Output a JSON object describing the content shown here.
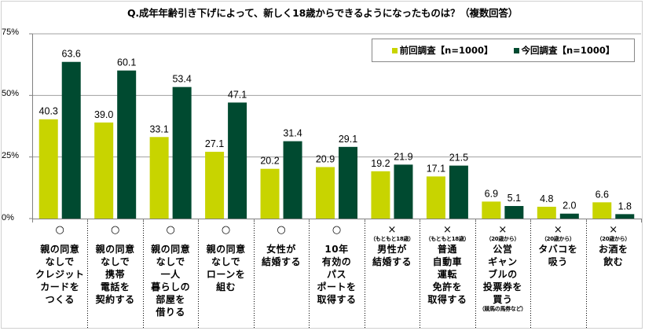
{
  "chart_data": {
    "type": "bar",
    "title": "Q.成年年齢引き下げによって、新しく18歳からできるようになったものは？（複数回答）",
    "xlabel": "",
    "ylabel": "",
    "ylim": [
      0,
      75
    ],
    "yticks": [
      "0%",
      "25%",
      "50%",
      "75%"
    ],
    "ytick_values": [
      0,
      25,
      50,
      75
    ],
    "grid": true,
    "legend_position": "top-right",
    "categories": [
      {
        "mark": "○",
        "note": "",
        "lines": [
          "親の同意",
          "なしで",
          "クレジット",
          "カードを",
          "つくる"
        ],
        "footnote": ""
      },
      {
        "mark": "○",
        "note": "",
        "lines": [
          "親の同意",
          "なしで",
          "携帯",
          "電話を",
          "契約する"
        ],
        "footnote": ""
      },
      {
        "mark": "○",
        "note": "",
        "lines": [
          "親の同意",
          "なしで",
          "一人",
          "暮らしの",
          "部屋を",
          "借りる"
        ],
        "footnote": ""
      },
      {
        "mark": "○",
        "note": "",
        "lines": [
          "親の同意",
          "なしで",
          "ローンを",
          "組む"
        ],
        "footnote": ""
      },
      {
        "mark": "○",
        "note": "",
        "lines": [
          "女性が",
          "結婚する"
        ],
        "footnote": ""
      },
      {
        "mark": "○",
        "note": "",
        "lines": [
          "10年",
          "有効の",
          "パス",
          "ポートを",
          "取得する"
        ],
        "footnote": ""
      },
      {
        "mark": "×",
        "note": "（もともと18歳）",
        "lines": [
          "男性が",
          "結婚する"
        ],
        "footnote": ""
      },
      {
        "mark": "×",
        "note": "（もともと18歳）",
        "lines": [
          "普通",
          "自動車",
          "運転",
          "免許を",
          "取得する"
        ],
        "footnote": ""
      },
      {
        "mark": "×",
        "note": "（20歳から）",
        "lines": [
          "公営",
          "ギャン",
          "ブルの",
          "投票券を",
          "買う"
        ],
        "footnote": "（競馬の馬券など）"
      },
      {
        "mark": "×",
        "note": "（20歳から）",
        "lines": [
          "タバコを",
          "吸う"
        ],
        "footnote": ""
      },
      {
        "mark": "×",
        "note": "（20歳から）",
        "lines": [
          "お酒を",
          "飲む"
        ],
        "footnote": ""
      }
    ],
    "series": [
      {
        "name": "前回調査【n=1000】",
        "color": "#c8d400",
        "values": [
          40.3,
          39.0,
          33.1,
          27.1,
          20.2,
          20.9,
          19.2,
          17.1,
          6.9,
          4.8,
          6.6
        ],
        "labels": [
          "40.3",
          "39.0",
          "33.1",
          "27.1",
          "20.2",
          "20.9",
          "19.2",
          "17.1",
          "6.9",
          "4.8",
          "6.6"
        ]
      },
      {
        "name": "今回調査【n=1000】",
        "color": "#004a30",
        "values": [
          63.6,
          60.1,
          53.4,
          47.1,
          31.4,
          29.1,
          21.9,
          21.5,
          5.1,
          2.0,
          1.8
        ],
        "labels": [
          "63.6",
          "60.1",
          "53.4",
          "47.1",
          "31.4",
          "29.1",
          "21.9",
          "21.5",
          "5.1",
          "2.0",
          "1.8"
        ]
      }
    ]
  }
}
